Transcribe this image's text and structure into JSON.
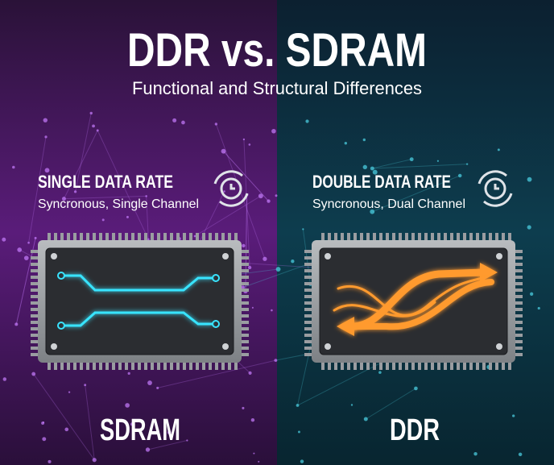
{
  "header": {
    "title": "DDR vs. SDRAM",
    "subtitle": "Functional and Structural Differences"
  },
  "panels": [
    {
      "heading": "SINGLE DATA RATE",
      "description": "Syncronous, Single Channel",
      "label": "SDRAM"
    },
    {
      "heading": "DOUBLE DATA RATE",
      "description": "Syncronous, Dual Channel",
      "label": "DDR"
    }
  ]
}
